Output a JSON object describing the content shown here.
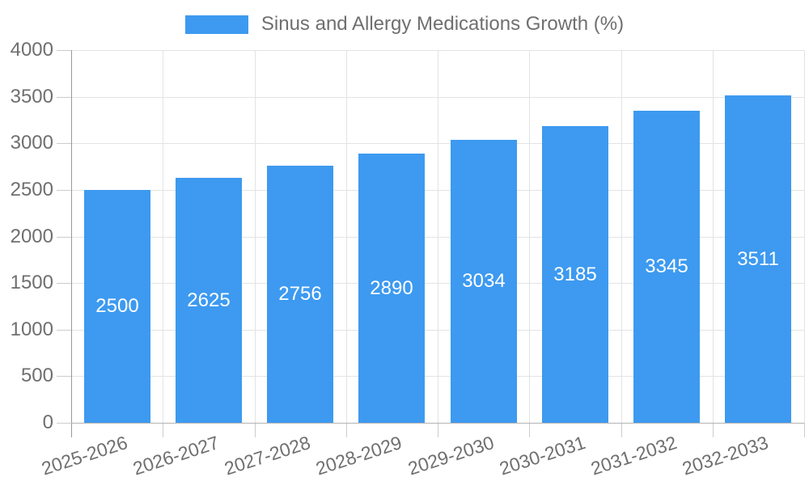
{
  "chart_data": {
    "type": "bar",
    "title": "Sinus and Allergy Medications Growth (%)",
    "categories": [
      "2025-2026",
      "2026-2027",
      "2027-2028",
      "2028-2029",
      "2029-2030",
      "2030-2031",
      "2031-2032",
      "2032-2033"
    ],
    "values": [
      2500,
      2625,
      2756,
      2890,
      3034,
      3185,
      3345,
      3511
    ],
    "xlabel": "",
    "ylabel": "",
    "ylim": [
      0,
      4000
    ],
    "ytick_step": 500,
    "ytick_labels": [
      "0",
      "500",
      "1000",
      "1500",
      "2000",
      "2500",
      "3000",
      "3500",
      "4000"
    ],
    "grid": true,
    "legend_position": "top",
    "x_label_rotation_deg": -18,
    "bar_labels_inside": true
  },
  "colors": {
    "bar": "#3d9af0",
    "bar_label": "#ffffff",
    "grid_line": "#e3e3e3",
    "axis_line_y": "#999999",
    "axis_line_x": "#b3b3b3",
    "tick_mark": "#cccccc",
    "tick_text": "#6f6f6f",
    "legend_text": "#6f6f6f",
    "background": "#ffffff"
  }
}
